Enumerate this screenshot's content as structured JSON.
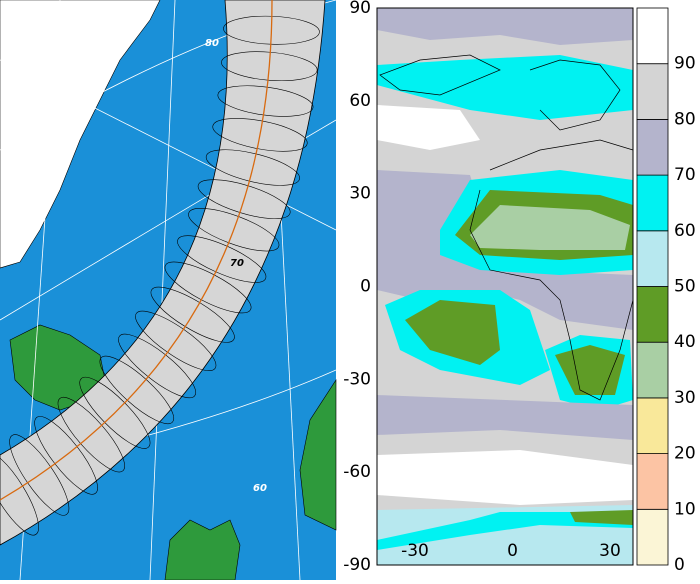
{
  "left_map": {
    "latitude_labels": [
      80,
      70,
      60
    ]
  },
  "right_map": {
    "yticks": [
      90,
      60,
      30,
      0,
      -30,
      -60,
      -90
    ],
    "xticks": [
      -30,
      0,
      30
    ]
  },
  "colorbar": {
    "ticks": [
      0,
      10,
      20,
      30,
      40,
      50,
      60,
      70,
      80,
      90
    ],
    "colors": [
      "#fbf5d6",
      "#fcc4a4",
      "#f9e89a",
      "#a9cfa4",
      "#5f9c26",
      "#b7e8ef",
      "#00f2f2",
      "#b4b4cc",
      "#d4d4d4",
      "#ffffff"
    ]
  }
}
